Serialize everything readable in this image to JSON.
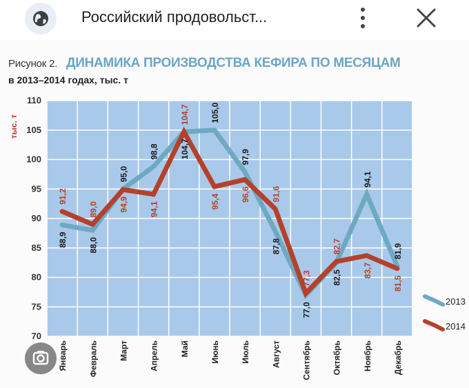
{
  "topbar": {
    "title": "Российский продовольст...",
    "icons": [
      "globe-icon",
      "more-vert-icon",
      "close-icon",
      "lens-icon"
    ]
  },
  "figure": {
    "label": "Рисунок 2.",
    "title": "ДИНАМИКА ПРОИЗВОДСТВА КЕФИРА ПО МЕСЯЦАМ",
    "subtitle": "в 2013–2014 годах, тыс. т"
  },
  "chart_data": {
    "type": "line",
    "categories": [
      "Январь",
      "Февраль",
      "Март",
      "Апрель",
      "Май",
      "Июнь",
      "Июль",
      "Август",
      "Сентябрь",
      "Октябрь",
      "Ноябрь",
      "Декабрь"
    ],
    "series": [
      {
        "name": "2013",
        "color": "#6ea9c2",
        "values": [
          88.9,
          88.0,
          95.0,
          98.8,
          104.7,
          105.0,
          97.9,
          87.8,
          77.0,
          82.5,
          94.1,
          81.9
        ],
        "labels": [
          "88,9",
          "88,0",
          "95,0",
          "98,8",
          "104,7",
          "105,0",
          "97,9",
          "87,8",
          "77,0",
          "82,5",
          "94,1",
          "81,9"
        ]
      },
      {
        "name": "2014",
        "color": "#b5412a",
        "values": [
          91.2,
          89.0,
          94.9,
          94.1,
          104.7,
          95.4,
          96.6,
          91.6,
          77.3,
          82.7,
          83.7,
          81.5
        ],
        "labels": [
          "91,2",
          "89,0",
          "94,9",
          "94,1",
          "104,7",
          "95,4",
          "96,6",
          "91,6",
          "77,3",
          "82,7",
          "83,7",
          "81,5"
        ]
      }
    ],
    "ylabel": "тыс. т",
    "ylim": [
      70,
      110
    ],
    "yticks": [
      70,
      75,
      80,
      85,
      90,
      95,
      100,
      105,
      110
    ],
    "grid": true,
    "legend": "right",
    "plot_background": "#a9c9ea",
    "grid_color": "#ffffff"
  }
}
